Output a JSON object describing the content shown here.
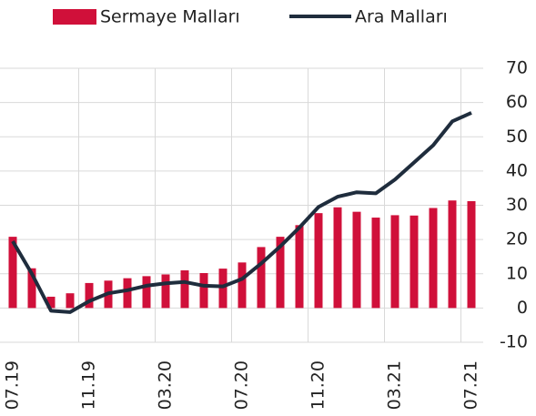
{
  "chart_data": {
    "type": "bar",
    "categories": [
      "07.19",
      null,
      null,
      null,
      "11.19",
      null,
      null,
      null,
      "03.20",
      null,
      null,
      null,
      "07.20",
      null,
      null,
      null,
      "11.20",
      null,
      null,
      null,
      "03.21",
      null,
      null,
      null,
      "07.21"
    ],
    "series": [
      {
        "name": "Sermaye Malları",
        "type": "bar",
        "color": "#d0103a",
        "values": [
          20.8,
          11.6,
          3.3,
          4.3,
          7.3,
          8,
          8.7,
          9.3,
          9.8,
          11,
          10.2,
          11.5,
          13.3,
          17.8,
          20.8,
          24.2,
          27.7,
          29.4,
          28.1,
          26.4,
          27.1,
          27,
          29.2,
          31.4,
          31.2
        ]
      },
      {
        "name": "Ara Malları",
        "type": "line",
        "color": "#1f2d3d",
        "values": [
          19.5,
          10,
          -0.8,
          -1.2,
          2,
          4.3,
          5.2,
          6.5,
          7.2,
          7.6,
          6.5,
          6.3,
          8.5,
          13,
          18,
          23.5,
          29.5,
          32.5,
          33.8,
          33.5,
          37.5,
          42.5,
          47.5,
          54.5,
          57
        ]
      }
    ],
    "ylim": [
      -10,
      70
    ],
    "yticks": [
      -10,
      0,
      10,
      20,
      30,
      40,
      50,
      60,
      70
    ],
    "grid": true,
    "legend": "top"
  }
}
